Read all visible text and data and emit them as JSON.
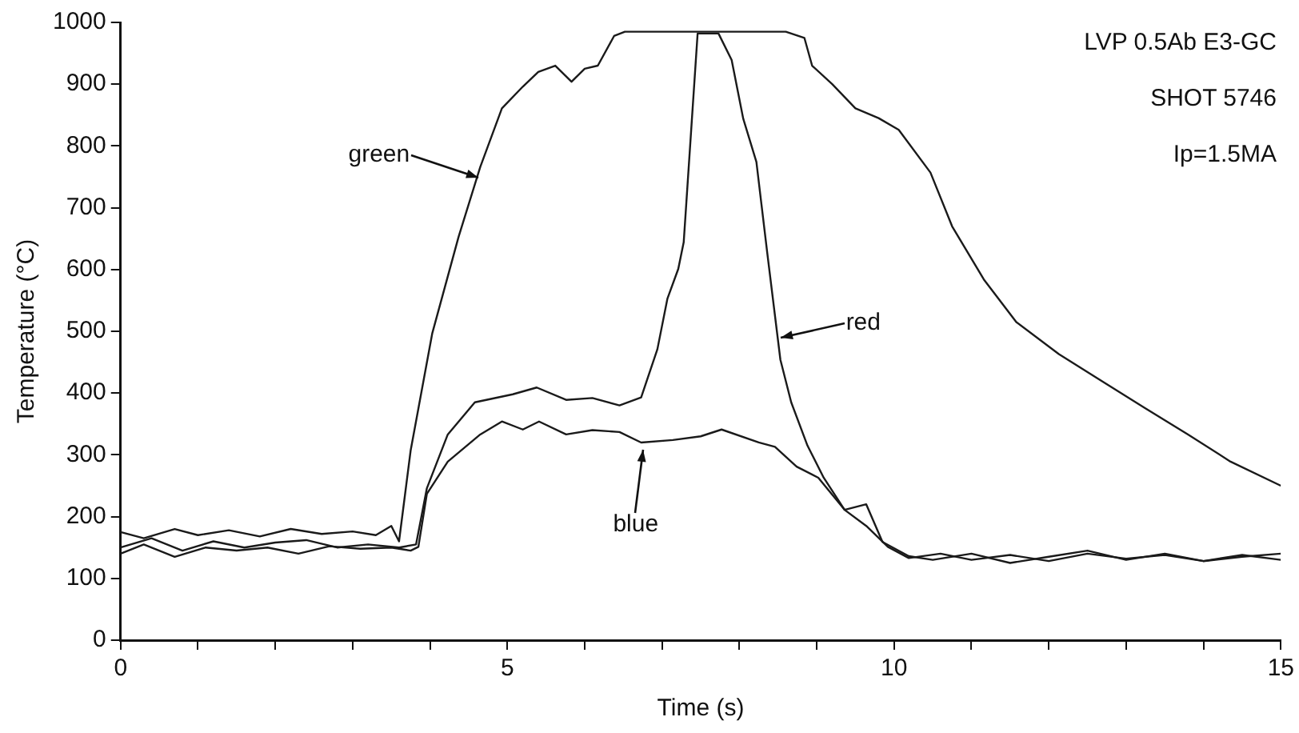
{
  "chart_data": {
    "type": "line",
    "xlabel": "Time (s)",
    "ylabel": "Temperature (°C)",
    "xlim": [
      0,
      15
    ],
    "ylim": [
      0,
      1000
    ],
    "xticks": [
      0,
      {
        "value": 1,
        "label": null
      },
      {
        "value": 2,
        "label": null
      },
      {
        "value": 3,
        "label": null
      },
      {
        "value": 4,
        "label": null
      },
      5,
      {
        "value": 6,
        "label": null
      },
      {
        "value": 7,
        "label": null
      },
      {
        "value": 8,
        "label": null
      },
      {
        "value": 9,
        "label": null
      },
      10,
      {
        "value": 11,
        "label": null
      },
      {
        "value": 12,
        "label": null
      },
      {
        "value": 13,
        "label": null
      },
      {
        "value": 14,
        "label": null
      },
      15
    ],
    "yticks": [
      0,
      100,
      200,
      300,
      400,
      500,
      600,
      700,
      800,
      900,
      1000
    ],
    "marker": "none",
    "line_style": "solid",
    "series": [
      {
        "color": "#1a1a1a",
        "x": [
          0,
          0.3,
          0.7,
          1.0,
          1.4,
          1.8,
          2.2,
          2.6,
          3.0,
          3.3,
          3.5,
          3.6,
          3.75,
          4.03,
          4.37,
          4.65,
          4.93,
          5.2,
          5.4,
          5.62,
          5.83,
          6.0,
          6.17,
          6.38,
          6.52,
          8.6,
          8.84,
          8.94,
          9.2,
          9.5,
          9.8,
          10.06,
          10.47,
          10.75,
          11.16,
          11.58,
          12.13,
          12.69,
          13.24,
          13.8,
          14.35,
          15
        ],
        "values": [
          175,
          165,
          180,
          170,
          178,
          168,
          180,
          172,
          176,
          170,
          185,
          160,
          307,
          497,
          653,
          766,
          861,
          896,
          920,
          930,
          904,
          925,
          930,
          978,
          985,
          985,
          975,
          930,
          900,
          861,
          845,
          826,
          757,
          670,
          584,
          515,
          463,
          419,
          376,
          333,
          289,
          250
        ]
      },
      {
        "color": "#1a1a1a",
        "x": [
          0,
          0.4,
          0.8,
          1.2,
          1.6,
          2.0,
          2.4,
          2.8,
          3.2,
          3.6,
          3.82,
          3.96,
          4.23,
          4.58,
          5.07,
          5.38,
          5.76,
          6.1,
          6.45,
          6.73,
          6.94,
          7.07,
          7.21,
          7.28,
          7.46,
          7.73,
          7.9,
          8.05,
          8.22,
          8.36,
          8.53,
          8.67,
          8.88,
          9.09,
          9.36,
          9.64,
          9.92,
          10.19,
          10.6,
          11.0,
          11.5,
          12.0,
          12.5,
          13.0,
          13.5,
          14.0,
          14.5,
          15
        ],
        "values": [
          150,
          165,
          145,
          160,
          150,
          158,
          162,
          150,
          155,
          150,
          155,
          246,
          333,
          385,
          398,
          409,
          389,
          392,
          380,
          393,
          471,
          553,
          601,
          644,
          982,
          982,
          939,
          844,
          774,
          627,
          454,
          385,
          315,
          263,
          211,
          185,
          151,
          133,
          140,
          130,
          138,
          128,
          140,
          132,
          138,
          128,
          135,
          140
        ]
      },
      {
        "color": "#1a1a1a",
        "x": [
          0,
          0.3,
          0.7,
          1.1,
          1.5,
          1.9,
          2.3,
          2.7,
          3.1,
          3.5,
          3.75,
          3.85,
          3.96,
          4.23,
          4.65,
          4.93,
          5.2,
          5.41,
          5.76,
          6.1,
          6.45,
          6.73,
          7.14,
          7.5,
          7.77,
          8.25,
          8.46,
          8.74,
          9.02,
          9.36,
          9.64,
          9.85,
          10.19,
          10.5,
          11.0,
          11.5,
          12.0,
          12.5,
          13.0,
          13.5,
          14.0,
          14.5,
          15
        ],
        "values": [
          140,
          155,
          135,
          150,
          145,
          150,
          140,
          152,
          148,
          150,
          145,
          151,
          237,
          289,
          333,
          354,
          341,
          354,
          333,
          340,
          337,
          320,
          324,
          330,
          341,
          320,
          313,
          281,
          263,
          211,
          220,
          159,
          136,
          130,
          140,
          125,
          135,
          145,
          130,
          140,
          128,
          138,
          130
        ]
      }
    ],
    "annotations": [
      {
        "text": "green",
        "x": 4.62,
        "y": 748
      },
      {
        "text": "red",
        "x": 8.53,
        "y": 489
      },
      {
        "text": "blue",
        "x": 6.76,
        "y": 307
      },
      "LVP 0.5Ab E3-GC",
      "SHOT 5746",
      "Ip=1.5MA"
    ]
  }
}
